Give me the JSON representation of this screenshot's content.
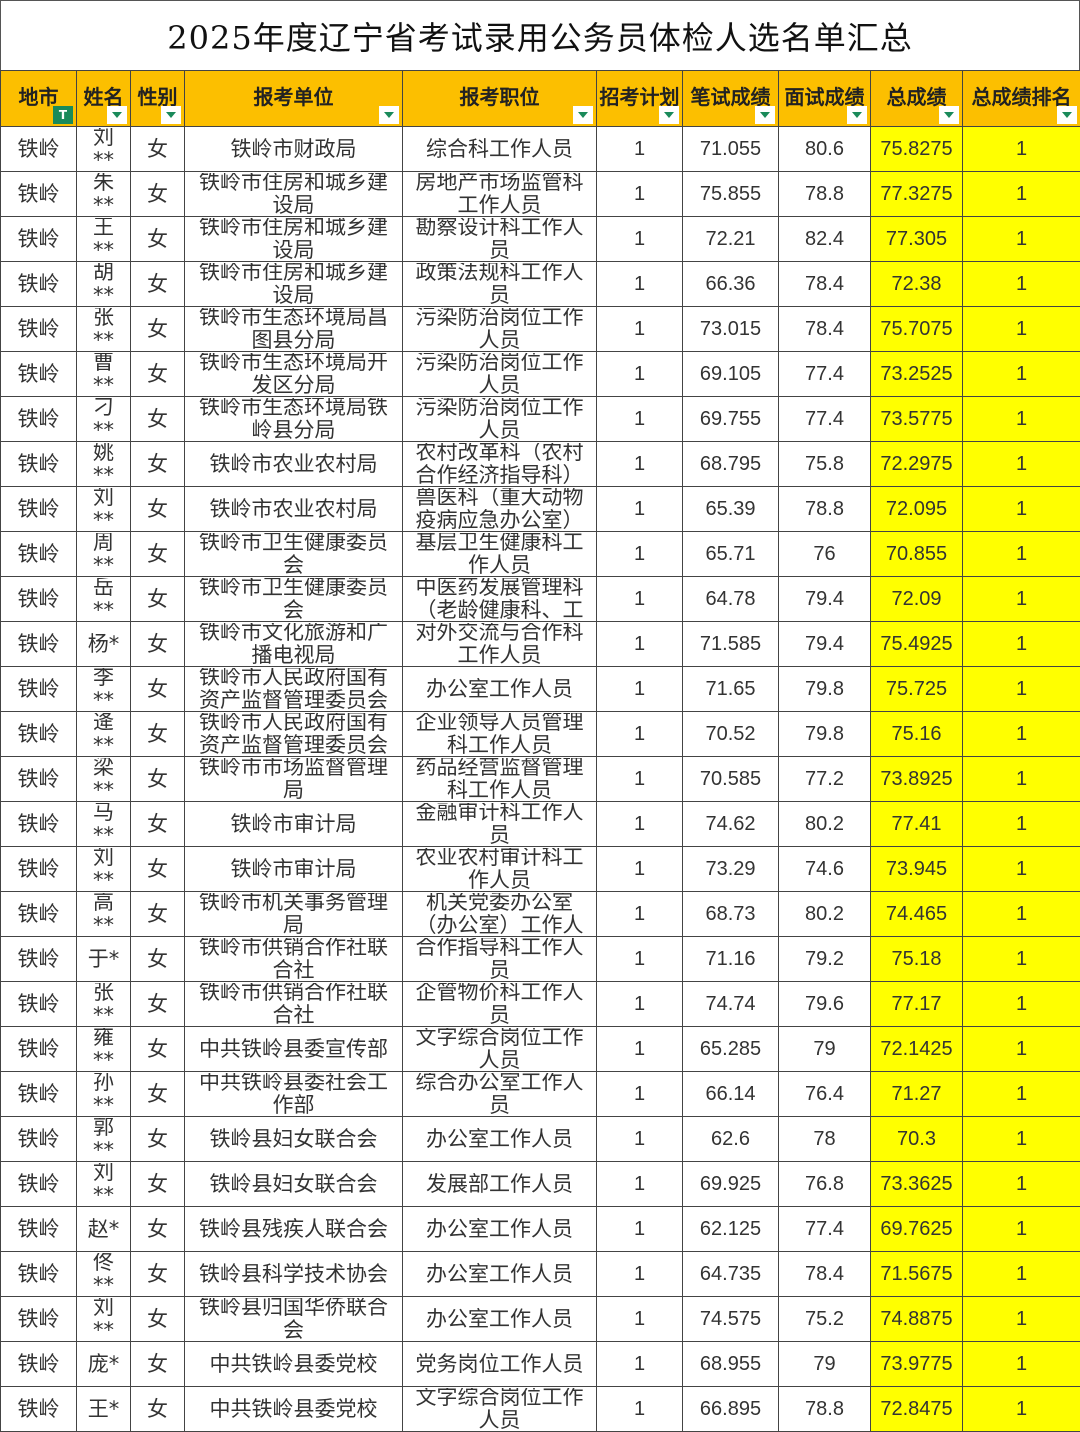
{
  "title": "2025年度辽宁省考试录用公务员体检人选名单汇总",
  "colors": {
    "header_bg": "#fcbf00",
    "highlight": "#ffff00",
    "filter_icon": "#1a8a5a"
  },
  "headers": [
    "地市",
    "姓名",
    "性别",
    "报考单位",
    "报考职位",
    "招考计划",
    "笔试成绩",
    "面试成绩",
    "总成绩",
    "总成绩排名"
  ],
  "rows": [
    [
      "铁岭",
      "刘**",
      "女",
      "铁岭市财政局",
      "综合科工作人员",
      "1",
      "71.055",
      "80.6",
      "75.8275",
      "1"
    ],
    [
      "铁岭",
      "朱**",
      "女",
      "铁岭市住房和城乡建设局",
      "房地产市场监管科工作人员",
      "1",
      "75.855",
      "78.8",
      "77.3275",
      "1"
    ],
    [
      "铁岭",
      "王**",
      "女",
      "铁岭市住房和城乡建设局",
      "勘察设计科工作人员",
      "1",
      "72.21",
      "82.4",
      "77.305",
      "1"
    ],
    [
      "铁岭",
      "胡**",
      "女",
      "铁岭市住房和城乡建设局",
      "政策法规科工作人员",
      "1",
      "66.36",
      "78.4",
      "72.38",
      "1"
    ],
    [
      "铁岭",
      "张**",
      "女",
      "铁岭市生态环境局昌图县分局",
      "污染防治岗位工作人员",
      "1",
      "73.015",
      "78.4",
      "75.7075",
      "1"
    ],
    [
      "铁岭",
      "曹**",
      "女",
      "铁岭市生态环境局开发区分局",
      "污染防治岗位工作人员",
      "1",
      "69.105",
      "77.4",
      "73.2525",
      "1"
    ],
    [
      "铁岭",
      "刁**",
      "女",
      "铁岭市生态环境局铁岭县分局",
      "污染防治岗位工作人员",
      "1",
      "69.755",
      "77.4",
      "73.5775",
      "1"
    ],
    [
      "铁岭",
      "姚**",
      "女",
      "铁岭市农业农村局",
      "农村改革科（农村合作经济指导科）",
      "1",
      "68.795",
      "75.8",
      "72.2975",
      "1"
    ],
    [
      "铁岭",
      "刘**",
      "女",
      "铁岭市农业农村局",
      "兽医科（重大动物疫病应急办公室）",
      "1",
      "65.39",
      "78.8",
      "72.095",
      "1"
    ],
    [
      "铁岭",
      "周**",
      "女",
      "铁岭市卫生健康委员会",
      "基层卫生健康科工作人员",
      "1",
      "65.71",
      "76",
      "70.855",
      "1"
    ],
    [
      "铁岭",
      "岳**",
      "女",
      "铁岭市卫生健康委员会",
      "中医药发展管理科（老龄健康科、工",
      "1",
      "64.78",
      "79.4",
      "72.09",
      "1"
    ],
    [
      "铁岭",
      "杨*",
      "女",
      "铁岭市文化旅游和广播电视局",
      "对外交流与合作科工作人员",
      "1",
      "71.585",
      "79.4",
      "75.4925",
      "1"
    ],
    [
      "铁岭",
      "李**",
      "女",
      "铁岭市人民政府国有资产监督管理委员会",
      "办公室工作人员",
      "1",
      "71.65",
      "79.8",
      "75.725",
      "1"
    ],
    [
      "铁岭",
      "逄**",
      "女",
      "铁岭市人民政府国有资产监督管理委员会",
      "企业领导人员管理科工作人员",
      "1",
      "70.52",
      "79.8",
      "75.16",
      "1"
    ],
    [
      "铁岭",
      "梁**",
      "女",
      "铁岭市市场监督管理局",
      "药品经营监督管理科工作人员",
      "1",
      "70.585",
      "77.2",
      "73.8925",
      "1"
    ],
    [
      "铁岭",
      "马**",
      "女",
      "铁岭市审计局",
      "金融审计科工作人员",
      "1",
      "74.62",
      "80.2",
      "77.41",
      "1"
    ],
    [
      "铁岭",
      "刘**",
      "女",
      "铁岭市审计局",
      "农业农村审计科工作人员",
      "1",
      "73.29",
      "74.6",
      "73.945",
      "1"
    ],
    [
      "铁岭",
      "高**",
      "女",
      "铁岭市机关事务管理局",
      "机关党委办公室（办公室）工作人",
      "1",
      "68.73",
      "80.2",
      "74.465",
      "1"
    ],
    [
      "铁岭",
      "于*",
      "女",
      "铁岭市供销合作社联合社",
      "合作指导科工作人员",
      "1",
      "71.16",
      "79.2",
      "75.18",
      "1"
    ],
    [
      "铁岭",
      "张**",
      "女",
      "铁岭市供销合作社联合社",
      "企管物价科工作人员",
      "1",
      "74.74",
      "79.6",
      "77.17",
      "1"
    ],
    [
      "铁岭",
      "雍**",
      "女",
      "中共铁岭县委宣传部",
      "文字综合岗位工作人员",
      "1",
      "65.285",
      "79",
      "72.1425",
      "1"
    ],
    [
      "铁岭",
      "孙**",
      "女",
      "中共铁岭县委社会工作部",
      "综合办公室工作人员",
      "1",
      "66.14",
      "76.4",
      "71.27",
      "1"
    ],
    [
      "铁岭",
      "郭**",
      "女",
      "铁岭县妇女联合会",
      "办公室工作人员",
      "1",
      "62.6",
      "78",
      "70.3",
      "1"
    ],
    [
      "铁岭",
      "刘**",
      "女",
      "铁岭县妇女联合会",
      "发展部工作人员",
      "1",
      "69.925",
      "76.8",
      "73.3625",
      "1"
    ],
    [
      "铁岭",
      "赵*",
      "女",
      "铁岭县残疾人联合会",
      "办公室工作人员",
      "1",
      "62.125",
      "77.4",
      "69.7625",
      "1"
    ],
    [
      "铁岭",
      "佟**",
      "女",
      "铁岭县科学技术协会",
      "办公室工作人员",
      "1",
      "64.735",
      "78.4",
      "71.5675",
      "1"
    ],
    [
      "铁岭",
      "刘**",
      "女",
      "铁岭县归国华侨联合会",
      "办公室工作人员",
      "1",
      "74.575",
      "75.2",
      "74.8875",
      "1"
    ],
    [
      "铁岭",
      "庞*",
      "女",
      "中共铁岭县委党校",
      "党务岗位工作人员",
      "1",
      "68.955",
      "79",
      "73.9775",
      "1"
    ],
    [
      "铁岭",
      "王*",
      "女",
      "中共铁岭县委党校",
      "文字综合岗位工作人员",
      "1",
      "66.895",
      "78.8",
      "72.8475",
      "1"
    ]
  ]
}
